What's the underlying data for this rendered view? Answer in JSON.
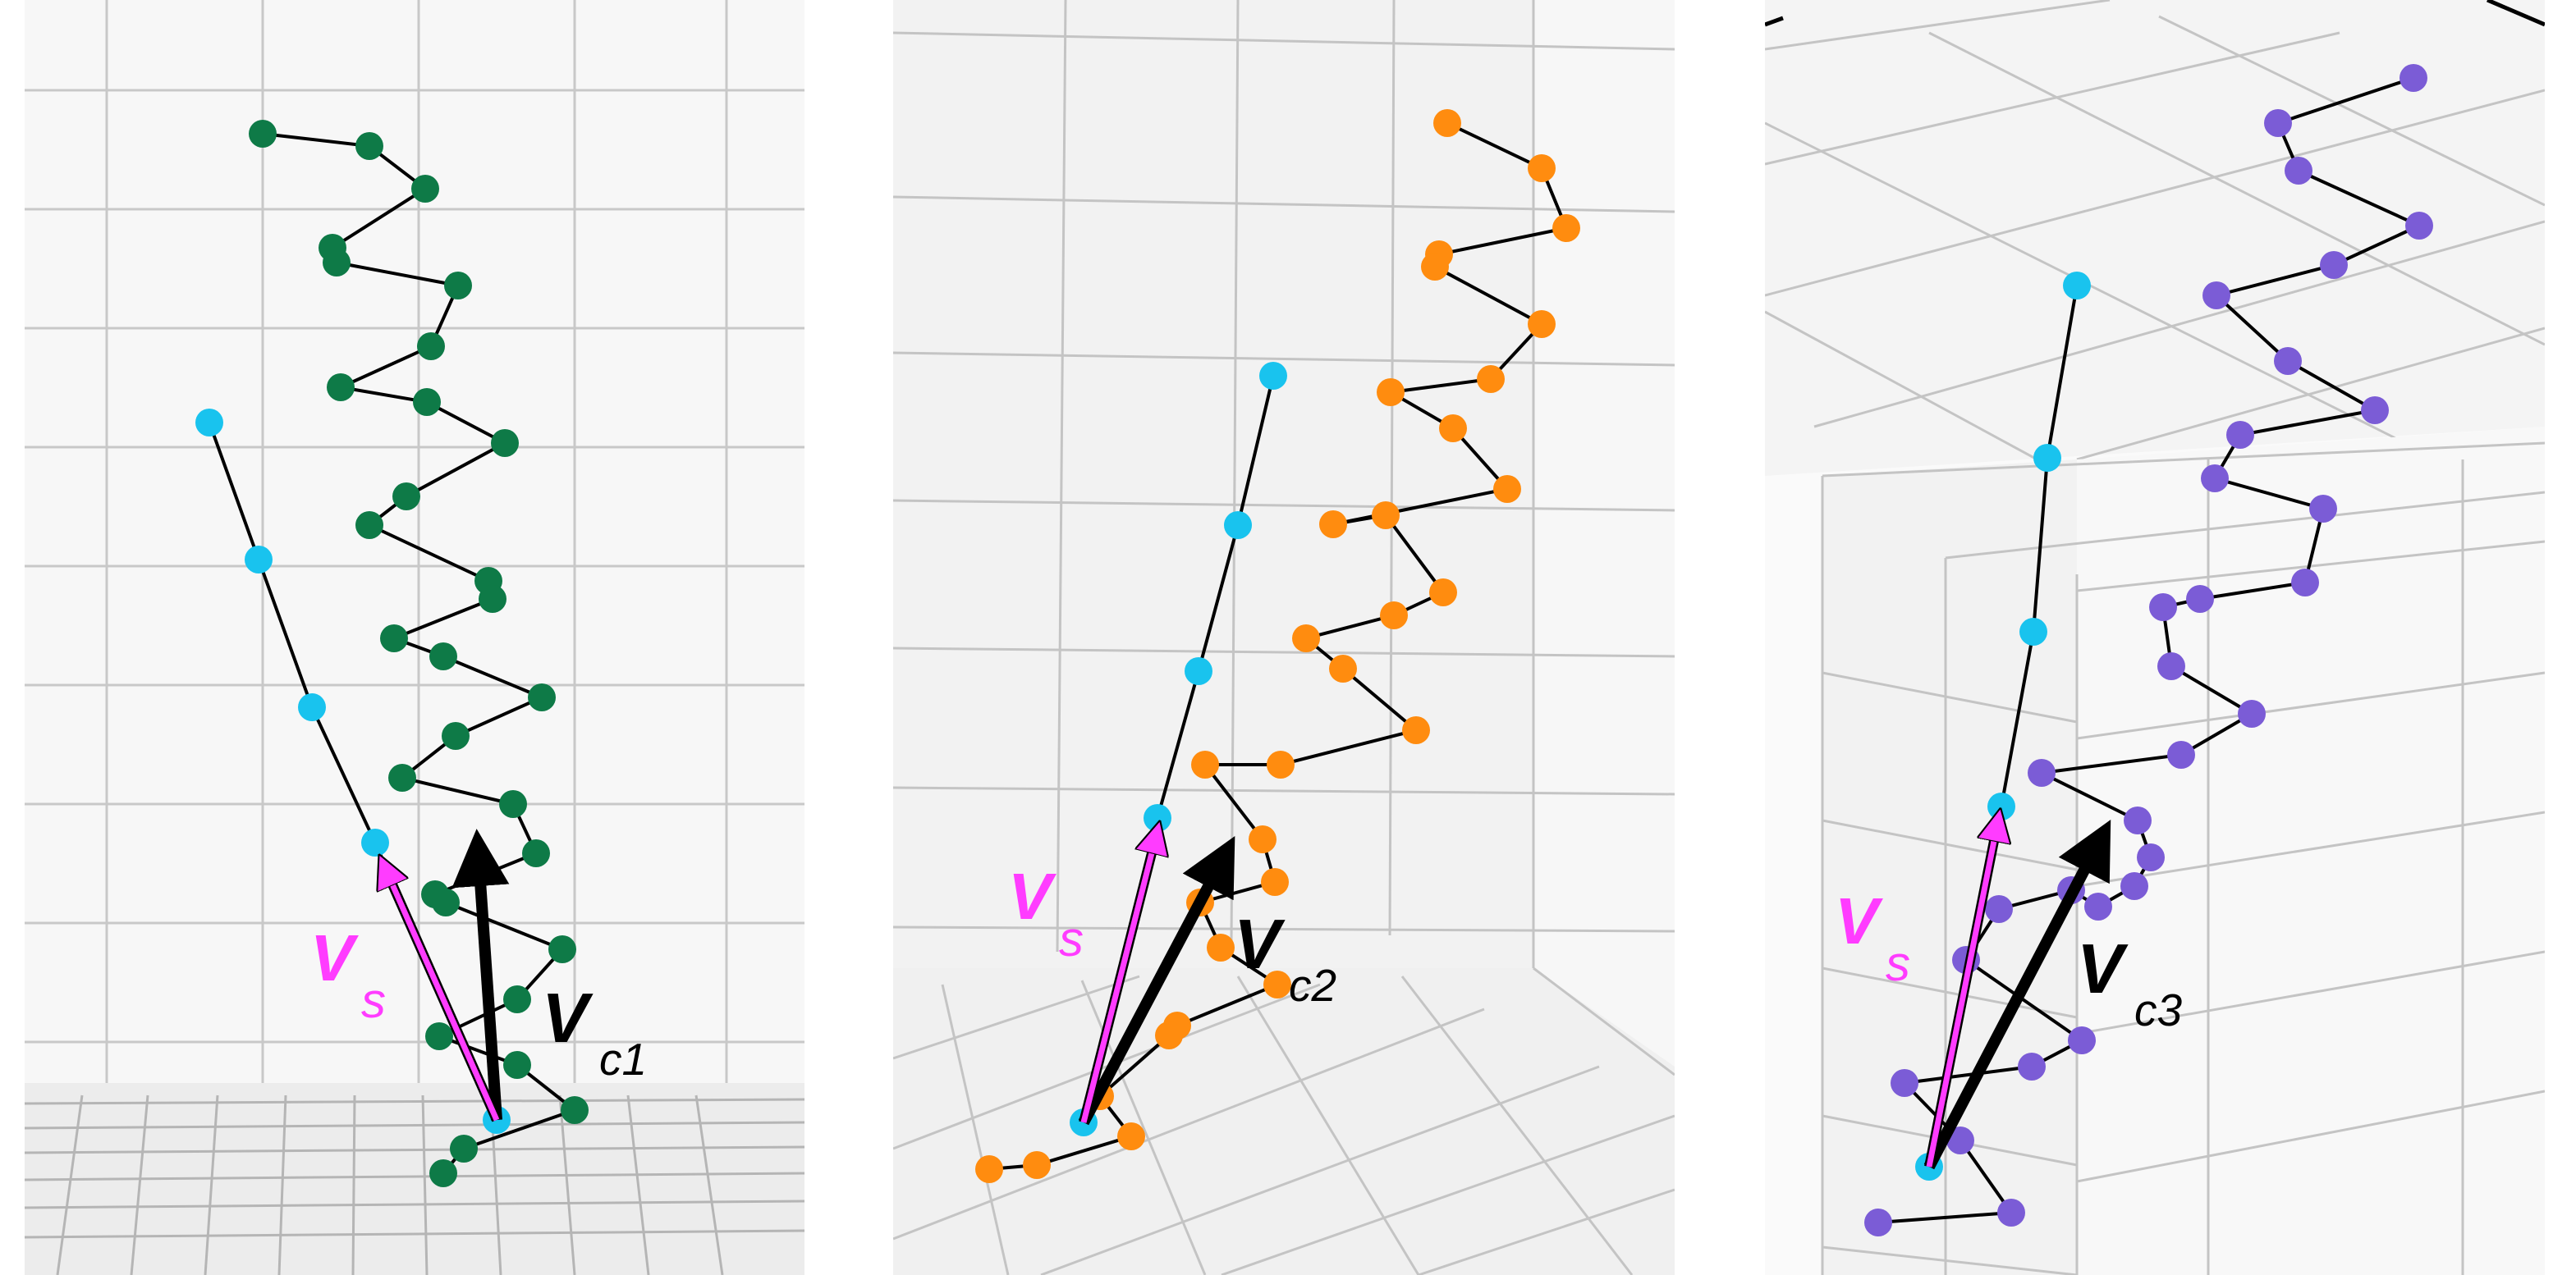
{
  "colors": {
    "background": "#ffffff",
    "pane": "#efefef",
    "pane_light": "#f6f6f6",
    "grid": "#c8c8c8",
    "spring_link": "#000000",
    "skeleton_joint": "#19c3ee",
    "vector_s": "#ff3cff",
    "vector_c": "#000000"
  },
  "panels": [
    {
      "id": "panel-1",
      "joint_color": "#0e7a47",
      "label_s_main": "V",
      "label_s_sub": "s",
      "label_c_main": "V",
      "label_c_sub": "c1"
    },
    {
      "id": "panel-2",
      "joint_color": "#ff8c0f",
      "label_s_main": "V",
      "label_s_sub": "s",
      "label_c_main": "V",
      "label_c_sub": "c2"
    },
    {
      "id": "panel-3",
      "joint_color": "#7b5cd6",
      "label_s_main": "V",
      "label_s_sub": "s",
      "label_c_main": "V",
      "label_c_sub": "c3"
    }
  ]
}
